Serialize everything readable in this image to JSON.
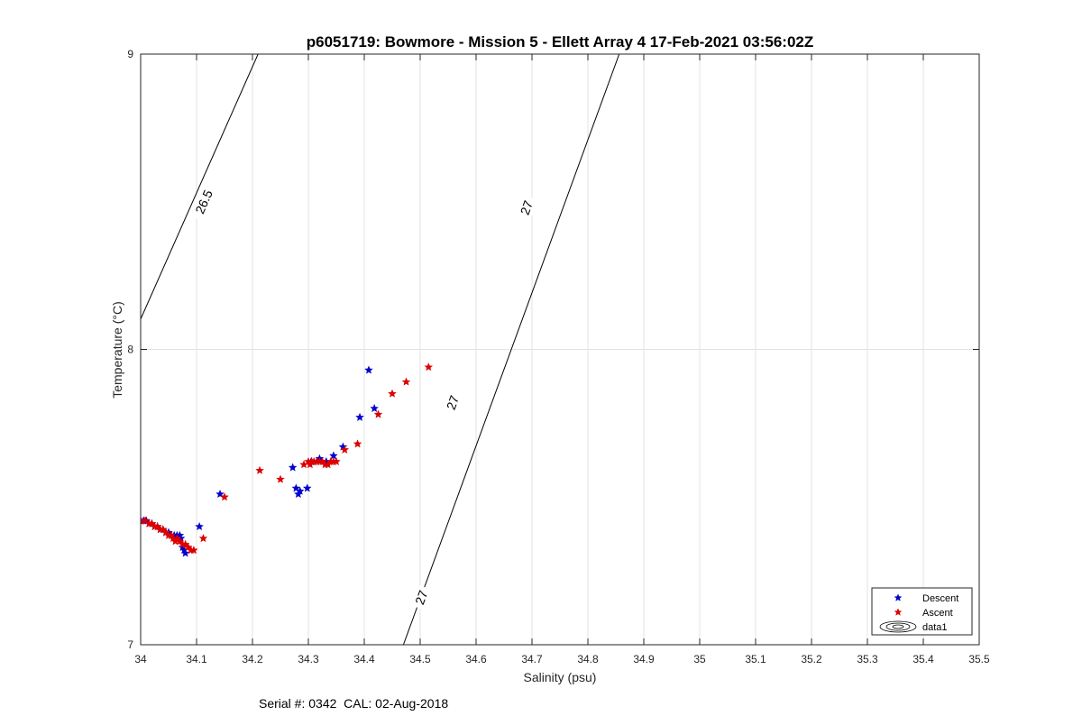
{
  "chart_data": {
    "type": "scatter",
    "title": "p6051719: Bowmore - Mission 5 - Ellett Array 4 17-Feb-2021 03:56:02Z",
    "xlabel": "Salinity (psu)",
    "ylabel": "Temperature (°C)",
    "xlim": [
      34,
      35.5
    ],
    "ylim": [
      7,
      9
    ],
    "xticks": [
      "34",
      "34.1",
      "34.2",
      "34.3",
      "34.4",
      "34.5",
      "34.6",
      "34.7",
      "34.8",
      "34.9",
      "35",
      "35.1",
      "35.2",
      "35.3",
      "35.4",
      "35.5"
    ],
    "yticks": [
      "7",
      "8",
      "9"
    ],
    "grid": true,
    "legend_position": "bottom-right",
    "colors": {
      "descent": "#0000cc",
      "ascent": "#dd0000",
      "contour": "#000000",
      "grid": "#e3e3e3",
      "axis": "#262626"
    },
    "series": [
      {
        "name": "Descent",
        "marker": "pentagram",
        "x": [
          34.0,
          34.005,
          34.01,
          34.015,
          34.02,
          34.025,
          34.03,
          34.035,
          34.04,
          34.045,
          34.05,
          34.055,
          34.06,
          34.065,
          34.07,
          34.072,
          34.075,
          34.078,
          34.08,
          34.105,
          34.142,
          34.272,
          34.278,
          34.282,
          34.285,
          34.298,
          34.305,
          34.32,
          34.332,
          34.345,
          34.362,
          34.392,
          34.408,
          34.418
        ],
        "y": [
          7.42,
          7.42,
          7.42,
          7.41,
          7.41,
          7.4,
          7.4,
          7.39,
          7.39,
          7.38,
          7.38,
          7.37,
          7.37,
          7.37,
          7.37,
          7.36,
          7.33,
          7.32,
          7.31,
          7.4,
          7.51,
          7.6,
          7.53,
          7.51,
          7.52,
          7.53,
          7.62,
          7.63,
          7.62,
          7.64,
          7.67,
          7.77,
          7.93,
          7.8
        ]
      },
      {
        "name": "Ascent",
        "marker": "pentagram",
        "x": [
          34.0,
          34.008,
          34.015,
          34.02,
          34.025,
          34.03,
          34.035,
          34.04,
          34.045,
          34.05,
          34.055,
          34.058,
          34.062,
          34.065,
          34.07,
          34.075,
          34.08,
          34.085,
          34.09,
          34.095,
          34.112,
          34.15,
          34.213,
          34.25,
          34.292,
          34.3,
          34.303,
          34.306,
          34.31,
          34.315,
          34.32,
          34.325,
          34.33,
          34.335,
          34.34,
          34.345,
          34.35,
          34.365,
          34.388,
          34.425,
          34.45,
          34.475,
          34.515
        ],
        "y": [
          7.42,
          7.42,
          7.41,
          7.41,
          7.4,
          7.4,
          7.39,
          7.39,
          7.38,
          7.37,
          7.37,
          7.36,
          7.35,
          7.36,
          7.35,
          7.34,
          7.34,
          7.33,
          7.32,
          7.32,
          7.36,
          7.5,
          7.59,
          7.56,
          7.61,
          7.62,
          7.61,
          7.62,
          7.62,
          7.62,
          7.62,
          7.62,
          7.61,
          7.61,
          7.62,
          7.62,
          7.62,
          7.66,
          7.68,
          7.78,
          7.85,
          7.89,
          7.94
        ]
      }
    ],
    "contours": [
      {
        "level": "26.5",
        "line": {
          "x": [
            33.88,
            34.21
          ],
          "y": [
            7.59,
            9.0
          ]
        },
        "labels": [
          {
            "text": "26.5",
            "x": 34.113,
            "y": 8.5
          }
        ]
      },
      {
        "level": "27",
        "line": {
          "x": [
            34.47,
            34.856
          ],
          "y": [
            7.0,
            9.0
          ]
        },
        "labels": [
          {
            "text": "27",
            "x": 34.558,
            "y": 7.82
          },
          {
            "text": "27",
            "x": 34.502,
            "y": 7.16
          },
          {
            "text": "27",
            "x": 34.69,
            "y": 8.48
          }
        ]
      }
    ],
    "legend": [
      {
        "label": "Descent",
        "icon": "blue-pentagram-icon"
      },
      {
        "label": "Ascent",
        "icon": "red-pentagram-icon"
      },
      {
        "label": "data1",
        "icon": "contour-ellipses-icon"
      }
    ]
  },
  "footer": {
    "serial": "Serial #: 0342  CAL: 02-Aug-2018"
  }
}
